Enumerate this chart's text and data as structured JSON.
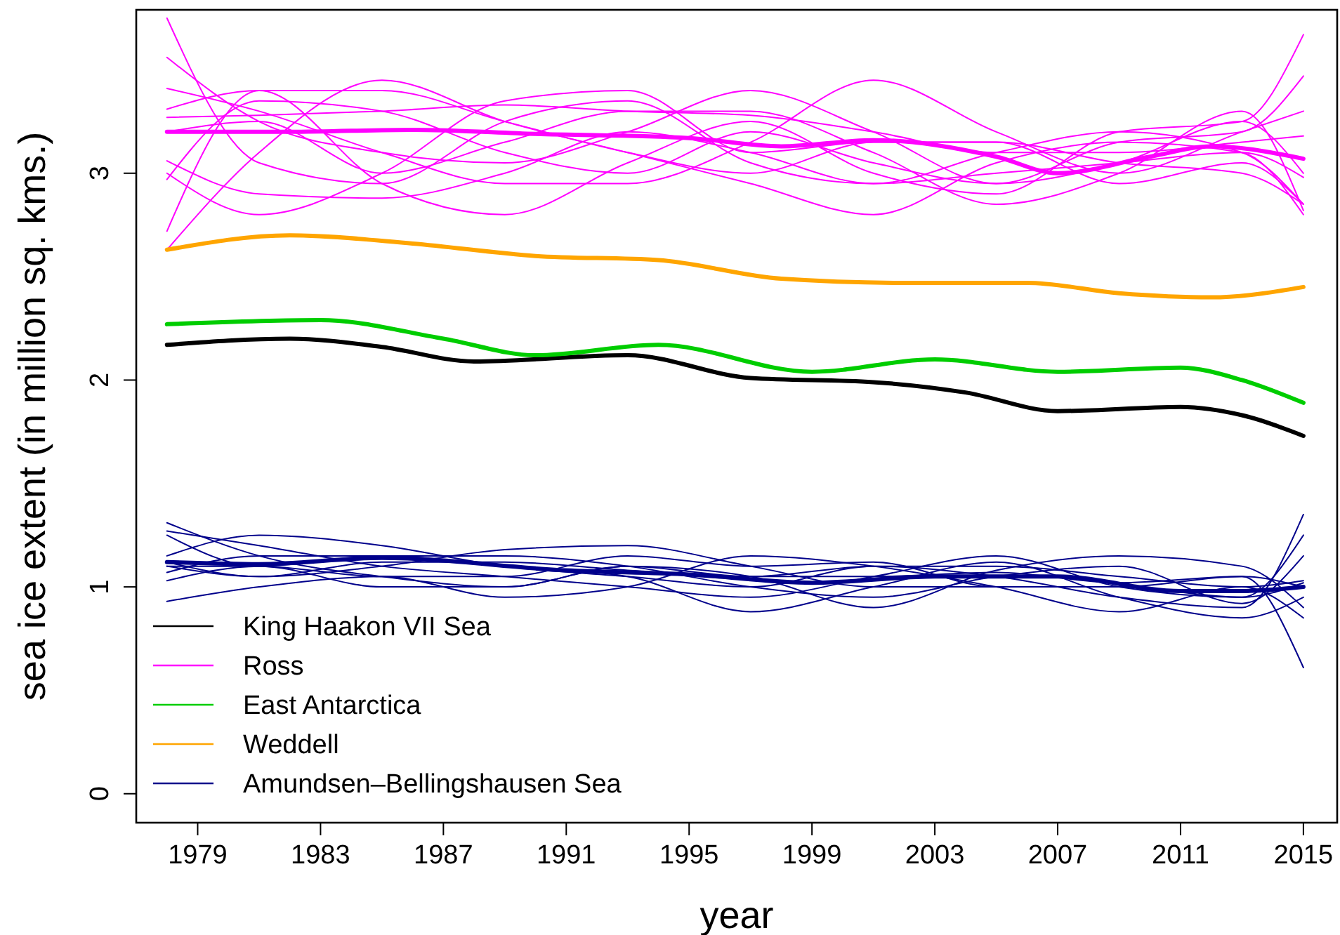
{
  "chart_data": {
    "type": "line",
    "xlabel": "year",
    "ylabel": "sea ice extent (in million sq. kms.)",
    "xlim": [
      1977,
      2016.1
    ],
    "ylim": [
      -0.14,
      3.79
    ],
    "xticks": [
      1979,
      1983,
      1987,
      1991,
      1995,
      1999,
      2003,
      2007,
      2011,
      2015
    ],
    "yticks": [
      0,
      1,
      2,
      3
    ],
    "grid": false,
    "legend": "bottom left",
    "line_style": "solid",
    "series": [
      {
        "name": "King Haakon VII Sea",
        "color": "#000000",
        "x": [
          1978,
          1982,
          1985,
          1988,
          1993,
          1997,
          2001,
          2004,
          2007,
          2011,
          2013,
          2015
        ],
        "values": [
          2.17,
          2.2,
          2.16,
          2.09,
          2.12,
          2.01,
          1.99,
          1.94,
          1.85,
          1.87,
          1.83,
          1.73
        ]
      },
      {
        "name": "Ross",
        "color": "#ff00ff",
        "x": [
          1978,
          1982,
          1986,
          1990,
          1995,
          1998,
          2001,
          2005,
          2007,
          2010,
          2012,
          2015
        ],
        "values": [
          3.2,
          3.2,
          3.21,
          3.19,
          3.17,
          3.13,
          3.16,
          3.08,
          3.0,
          3.08,
          3.13,
          3.07
        ]
      },
      {
        "name": "East Antarctica",
        "color": "#00cd00",
        "x": [
          1978,
          1983,
          1987,
          1990,
          1994,
          1999,
          2003,
          2007,
          2011,
          2013,
          2015
        ],
        "values": [
          2.27,
          2.29,
          2.2,
          2.12,
          2.17,
          2.04,
          2.1,
          2.04,
          2.06,
          2.0,
          1.89
        ]
      },
      {
        "name": "Weddell",
        "color": "#ffa500",
        "x": [
          1978,
          1982,
          1986,
          1990,
          1994,
          1998,
          2002,
          2006,
          2009,
          2012,
          2015
        ],
        "values": [
          2.63,
          2.7,
          2.66,
          2.6,
          2.58,
          2.49,
          2.47,
          2.47,
          2.42,
          2.4,
          2.45
        ]
      },
      {
        "name": "Amundsen–Bellingshausen Sea",
        "color": "#00008b",
        "x": [
          1978,
          1981,
          1985,
          1991,
          1995,
          1999,
          2003,
          2007,
          2011,
          2013,
          2015
        ],
        "values": [
          1.12,
          1.11,
          1.14,
          1.08,
          1.06,
          1.02,
          1.05,
          1.05,
          0.98,
          0.98,
          1.0
        ]
      },
      {
        "color": "#ff00ff",
        "x": [
          1978,
          1981,
          1985,
          1989,
          1993,
          1997,
          2001,
          2005,
          2009,
          2013,
          2015
        ],
        "values": [
          3.75,
          3.05,
          2.95,
          3.25,
          3.35,
          3.05,
          2.95,
          3.1,
          3.2,
          3.1,
          2.85
        ]
      },
      {
        "color": "#ff00ff",
        "x": [
          1978,
          1981,
          1985,
          1989,
          1993,
          1997,
          2001,
          2005,
          2009,
          2013,
          2015
        ],
        "values": [
          3.56,
          3.25,
          3.1,
          3.05,
          3.2,
          3.4,
          3.2,
          2.95,
          3.05,
          3.25,
          3.0
        ]
      },
      {
        "color": "#ff00ff",
        "x": [
          1978,
          1981,
          1985,
          1989,
          1993,
          1997,
          2001,
          2005,
          2009,
          2013,
          2015
        ],
        "values": [
          3.41,
          3.3,
          3.1,
          2.95,
          2.95,
          3.15,
          3.45,
          3.2,
          3.0,
          3.2,
          3.3
        ]
      },
      {
        "color": "#ff00ff",
        "x": [
          1978,
          1981,
          1985,
          1989,
          1993,
          1997,
          2001,
          2005,
          2009,
          2013,
          2015
        ],
        "values": [
          3.31,
          3.4,
          3.4,
          3.25,
          3.1,
          3.0,
          3.15,
          3.15,
          2.95,
          3.05,
          2.85
        ]
      },
      {
        "color": "#ff00ff",
        "x": [
          1978,
          1981,
          1985,
          1989,
          1993,
          1997,
          2001,
          2005,
          2009,
          2013,
          2015
        ],
        "values": [
          3.27,
          3.28,
          3.3,
          3.33,
          3.3,
          3.28,
          3.2,
          3.1,
          3.1,
          3.15,
          3.18
        ]
      },
      {
        "color": "#ff00ff",
        "x": [
          1978,
          1981,
          1985,
          1989,
          1993,
          1997,
          2001,
          2005,
          2009,
          2013,
          2015
        ],
        "values": [
          3.06,
          2.9,
          2.88,
          3.0,
          3.2,
          3.1,
          2.95,
          3.0,
          3.05,
          3.1,
          2.98
        ]
      },
      {
        "color": "#ff00ff",
        "x": [
          1978,
          1981,
          1985,
          1989,
          1993,
          1997,
          2001,
          2005,
          2009,
          2013,
          2015
        ],
        "values": [
          2.97,
          3.35,
          3.3,
          3.1,
          3.0,
          3.2,
          3.05,
          2.95,
          3.15,
          3.2,
          3.47
        ]
      },
      {
        "color": "#ff00ff",
        "x": [
          1978,
          1981,
          1985,
          1989,
          1993,
          1997,
          2001,
          2005,
          2009,
          2013,
          2015
        ],
        "values": [
          2.72,
          3.4,
          2.95,
          2.8,
          3.05,
          3.25,
          3.0,
          2.9,
          3.2,
          3.25,
          3.67
        ]
      },
      {
        "color": "#ff00ff",
        "x": [
          1978,
          1981,
          1985,
          1989,
          1993,
          1997,
          2001,
          2005,
          2009,
          2013,
          2015
        ],
        "values": [
          2.63,
          3.1,
          3.45,
          3.25,
          3.1,
          2.95,
          2.8,
          3.05,
          3.15,
          3.1,
          2.8
        ]
      },
      {
        "color": "#ff00ff",
        "x": [
          1978,
          1981,
          1985,
          1989,
          1993,
          1997,
          2001,
          2005,
          2009,
          2013,
          2015
        ],
        "values": [
          3.2,
          3.25,
          3.0,
          3.15,
          3.3,
          3.3,
          3.1,
          2.85,
          3.0,
          3.3,
          2.82
        ]
      },
      {
        "color": "#ff00ff",
        "x": [
          1978,
          1981,
          1985,
          1989,
          1993,
          1997,
          2001,
          2005,
          2009,
          2013,
          2015
        ],
        "values": [
          3.0,
          2.8,
          3.0,
          3.35,
          3.4,
          3.1,
          3.15,
          3.15,
          3.05,
          3.0,
          2.85
        ]
      },
      {
        "color": "#00008b",
        "x": [
          1978,
          1981,
          1985,
          1989,
          1993,
          1997,
          2001,
          2005,
          2009,
          2013,
          2015
        ],
        "values": [
          1.31,
          1.15,
          1.05,
          1.0,
          1.1,
          1.05,
          1.1,
          1.05,
          0.95,
          0.9,
          1.35
        ]
      },
      {
        "color": "#00008b",
        "x": [
          1978,
          1981,
          1985,
          1989,
          1993,
          1997,
          2001,
          2005,
          2009,
          2013,
          2015
        ],
        "values": [
          1.27,
          1.2,
          1.1,
          1.05,
          1.0,
          0.95,
          1.05,
          1.15,
          1.0,
          0.95,
          1.25
        ]
      },
      {
        "color": "#00008b",
        "x": [
          1978,
          1981,
          1985,
          1989,
          1993,
          1997,
          2001,
          2005,
          2009,
          2013,
          2015
        ],
        "values": [
          1.25,
          1.1,
          1.15,
          1.15,
          1.1,
          1.0,
          0.95,
          1.05,
          1.1,
          0.92,
          1.15
        ]
      },
      {
        "color": "#00008b",
        "x": [
          1978,
          1981,
          1985,
          1989,
          1993,
          1997,
          2001,
          2005,
          2009,
          2013,
          2015
        ],
        "values": [
          1.15,
          1.25,
          1.2,
          1.1,
          1.05,
          1.0,
          1.1,
          1.1,
          1.05,
          1.0,
          1.03
        ]
      },
      {
        "color": "#00008b",
        "x": [
          1978,
          1981,
          1985,
          1989,
          1993,
          1997,
          2001,
          2005,
          2009,
          2013,
          2015
        ],
        "values": [
          1.1,
          1.05,
          1.1,
          1.18,
          1.2,
          1.1,
          1.0,
          1.0,
          1.0,
          1.05,
          1.0
        ]
      },
      {
        "color": "#00008b",
        "x": [
          1978,
          1981,
          1985,
          1989,
          1993,
          1997,
          2001,
          2005,
          2009,
          2013,
          2015
        ],
        "values": [
          1.07,
          1.15,
          1.15,
          1.1,
          1.05,
          0.88,
          1.0,
          1.12,
          0.95,
          0.85,
          0.95
        ]
      },
      {
        "color": "#00008b",
        "x": [
          1978,
          1981,
          1985,
          1989,
          1993,
          1997,
          2001,
          2005,
          2009,
          2013,
          2015
        ],
        "values": [
          1.03,
          1.1,
          1.0,
          1.0,
          1.1,
          1.05,
          0.9,
          1.08,
          1.15,
          1.1,
          0.9
        ]
      },
      {
        "color": "#00008b",
        "x": [
          1978,
          1981,
          1985,
          1989,
          1993,
          1997,
          2001,
          2005,
          2009,
          2013,
          2015
        ],
        "values": [
          0.93,
          1.0,
          1.05,
          0.95,
          1.0,
          1.15,
          1.1,
          1.0,
          0.88,
          1.0,
          0.85
        ]
      },
      {
        "color": "#00008b",
        "x": [
          1978,
          1981,
          1985,
          1989,
          1993,
          1997,
          2001,
          2005,
          2009,
          2013,
          2015
        ],
        "values": [
          1.12,
          1.05,
          1.12,
          1.12,
          1.08,
          1.05,
          1.05,
          1.07,
          1.02,
          1.05,
          0.61
        ]
      },
      {
        "color": "#00008b",
        "x": [
          1978,
          1981,
          1985,
          1989,
          1993,
          1997,
          2001,
          2005,
          2009,
          2013,
          2015
        ],
        "values": [
          1.1,
          1.1,
          1.05,
          1.05,
          1.15,
          1.1,
          1.12,
          1.0,
          1.0,
          0.95,
          1.02
        ]
      }
    ]
  }
}
